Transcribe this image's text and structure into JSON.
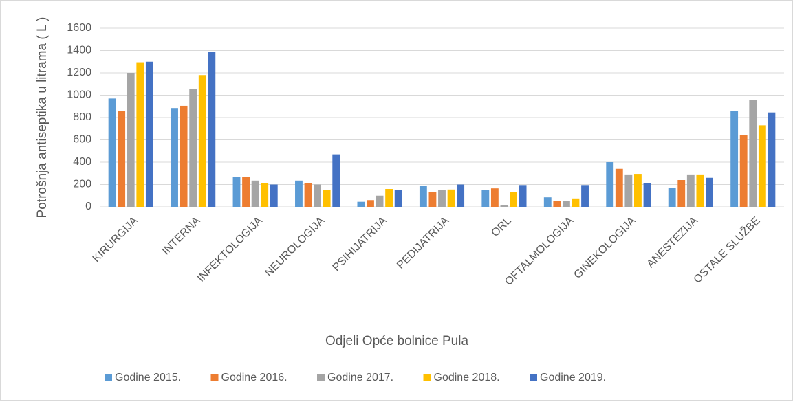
{
  "chart_data": {
    "type": "bar",
    "xlabel": "Odjeli Opće bolnice Pula",
    "ylabel": "Potrošnja antiseptika u litrama ( L )",
    "categories": [
      "KIRURGIJA",
      "INTERNA",
      "INFEKTOLOGIJA",
      "NEUROLOGIJA",
      "PSIHIJATRIJA",
      "PEDIJATRIJA",
      "ORL",
      "OFTALMOLOGIJA",
      "GINEKOLOGIJA",
      "ANESTEZIJA",
      "OSTALE SLUŽBE"
    ],
    "series": [
      {
        "name": "Godine 2015.",
        "color": "#5b9bd5",
        "values": [
          970,
          885,
          265,
          235,
          45,
          185,
          150,
          85,
          400,
          170,
          860
        ]
      },
      {
        "name": "Godine 2016.",
        "color": "#ed7d31",
        "values": [
          860,
          905,
          270,
          215,
          60,
          130,
          165,
          55,
          340,
          240,
          645
        ]
      },
      {
        "name": "Godine 2017.",
        "color": "#a5a5a5",
        "values": [
          1200,
          1055,
          235,
          200,
          100,
          150,
          15,
          50,
          290,
          290,
          960
        ]
      },
      {
        "name": "Godine 2018.",
        "color": "#ffc000",
        "values": [
          1295,
          1180,
          210,
          150,
          160,
          155,
          135,
          75,
          295,
          290,
          730
        ]
      },
      {
        "name": "Godine 2019.",
        "color": "#4472c4",
        "values": [
          1300,
          1385,
          200,
          470,
          150,
          200,
          195,
          195,
          210,
          260,
          845
        ]
      }
    ],
    "ylim": [
      0,
      1600
    ],
    "yticks": [
      0,
      200,
      400,
      600,
      800,
      1000,
      1200,
      1400,
      1600
    ],
    "grid": true,
    "legend": "bottom"
  }
}
